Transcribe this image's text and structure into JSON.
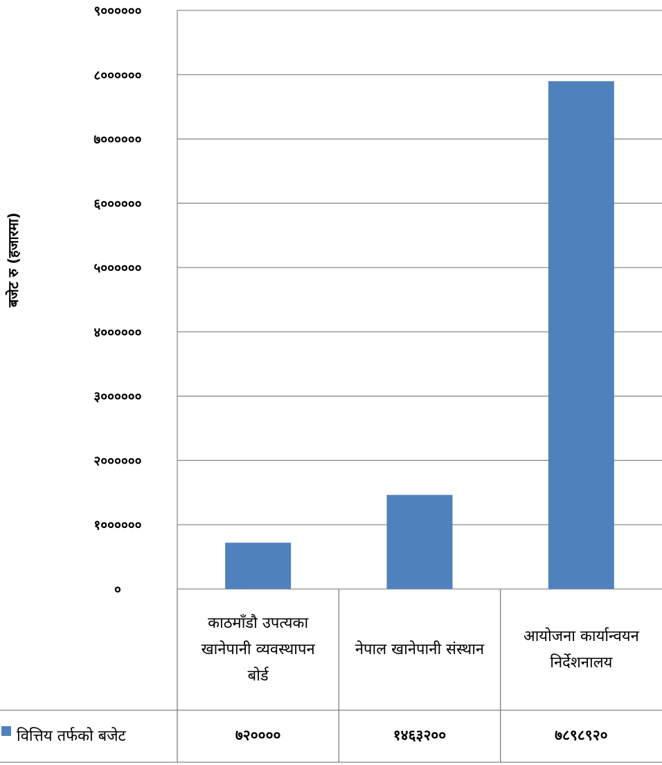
{
  "chart_data": {
    "type": "bar",
    "title": "",
    "xlabel": "",
    "ylabel": "बजेट रु (हजारमा)",
    "ylim": [
      0,
      9000000
    ],
    "ytick_values": [
      0,
      1000000,
      2000000,
      3000000,
      4000000,
      5000000,
      6000000,
      7000000,
      8000000,
      9000000
    ],
    "ytick_labels": [
      "०",
      "१००००००",
      "२००००००",
      "३००००००",
      "४००००००",
      "५००००००",
      "६००००००",
      "७००००००",
      "८००००००",
      "९००००००"
    ],
    "grid": true,
    "legend_position": "left of data table",
    "categories": [
      "काठमाँडौ उपत्यका खानेपानी व्यवस्थापन बोर्ड",
      "नेपाल खानेपानी संस्थान",
      "आयोजना कार्यान्वयन निर्देशनालय"
    ],
    "series": [
      {
        "name": "वित्तिय तर्फको बजेट",
        "color": "#4f81bd",
        "values": [
          720000,
          1463200,
          7898920
        ],
        "value_labels": [
          "७२००००",
          "१४६३२००",
          "७८९८९२०"
        ]
      }
    ]
  }
}
